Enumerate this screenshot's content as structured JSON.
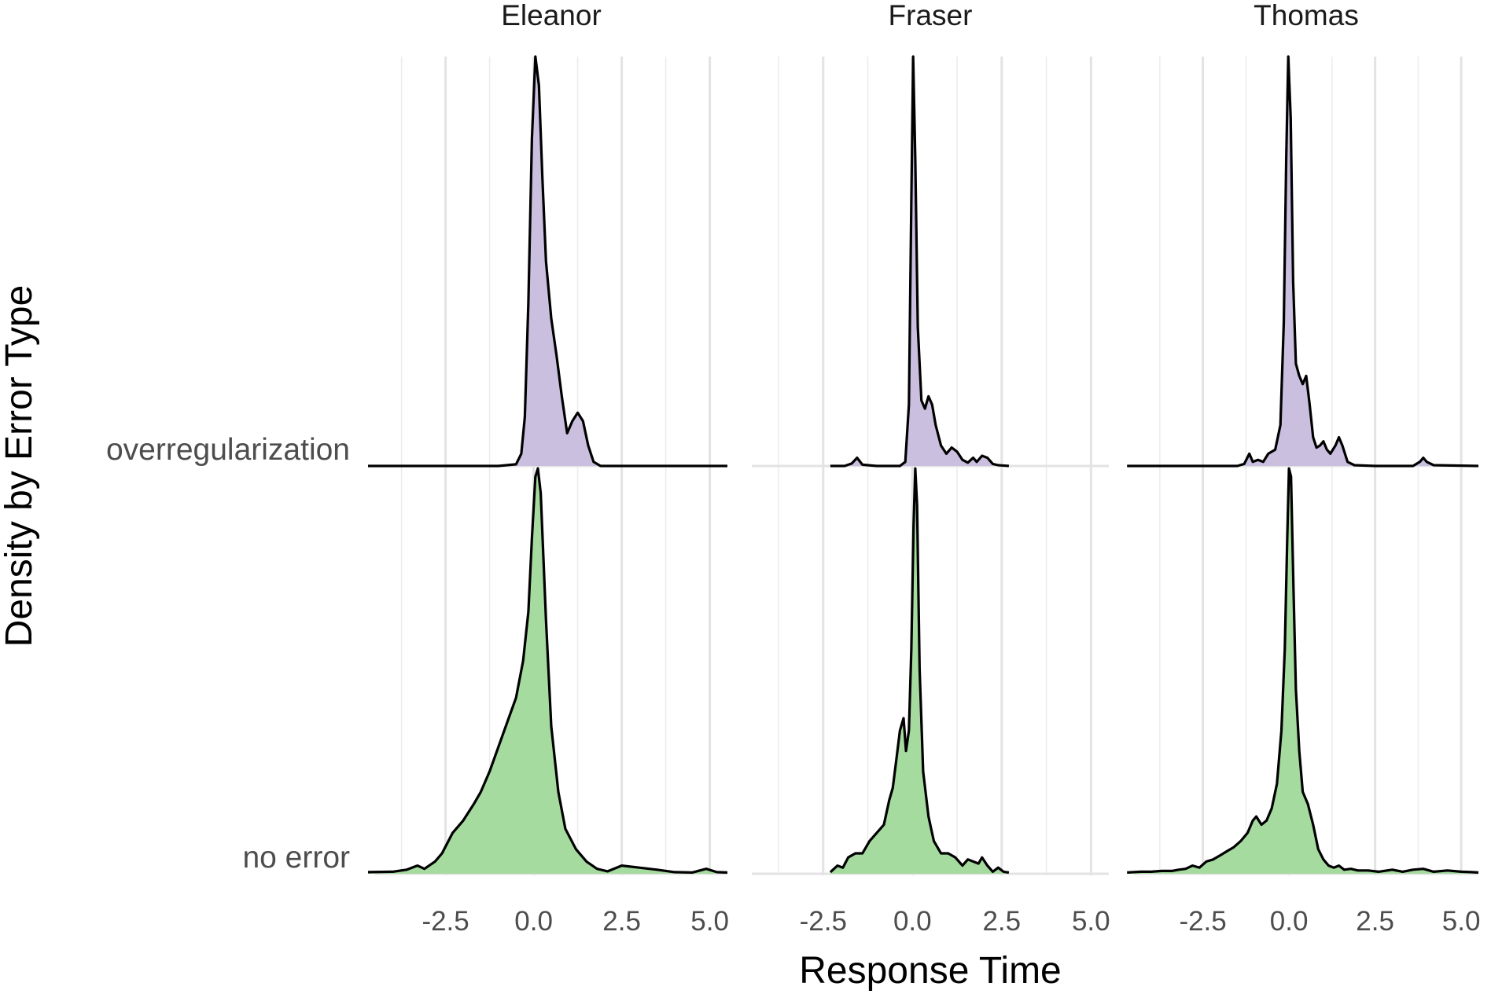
{
  "chart_data": {
    "type": "ridgeline-density",
    "xlabel": "Response Time",
    "ylabel": "Density by Error Type",
    "xlim": [
      -4.5,
      5.5
    ],
    "x_ticks": [
      -2.5,
      0.0,
      2.5,
      5.0
    ],
    "x_tick_labels": [
      "-2.5",
      "0.0",
      "2.5",
      "5.0"
    ],
    "grid": "vertical major and minor",
    "legend": "none",
    "categories": [
      "no error",
      "overregularization"
    ],
    "colors": {
      "overregularization": "#cbbfe0",
      "no error": "#a6dba0",
      "line": "#000000"
    },
    "facets": [
      {
        "name": "Eleanor",
        "series": [
          {
            "name": "overregularization",
            "points": [
              [
                -4.7,
                0
              ],
              [
                -1.0,
                0
              ],
              [
                -0.5,
                0.004
              ],
              [
                -0.35,
                0.03
              ],
              [
                -0.25,
                0.12
              ],
              [
                -0.15,
                0.4
              ],
              [
                -0.05,
                0.8
              ],
              [
                0.05,
                1.0
              ],
              [
                0.15,
                0.93
              ],
              [
                0.25,
                0.7
              ],
              [
                0.35,
                0.5
              ],
              [
                0.5,
                0.36
              ],
              [
                0.65,
                0.27
              ],
              [
                0.8,
                0.17
              ],
              [
                0.95,
                0.08
              ],
              [
                1.1,
                0.11
              ],
              [
                1.25,
                0.13
              ],
              [
                1.4,
                0.11
              ],
              [
                1.55,
                0.05
              ],
              [
                1.7,
                0.01
              ],
              [
                1.9,
                0
              ],
              [
                5.5,
                0
              ]
            ]
          },
          {
            "name": "no error",
            "points": [
              [
                -4.7,
                0.004
              ],
              [
                -4.0,
                0.005
              ],
              [
                -3.6,
                0.01
              ],
              [
                -3.3,
                0.02
              ],
              [
                -3.1,
                0.012
              ],
              [
                -2.8,
                0.03
              ],
              [
                -2.6,
                0.05
              ],
              [
                -2.3,
                0.1
              ],
              [
                -2.0,
                0.13
              ],
              [
                -1.7,
                0.17
              ],
              [
                -1.5,
                0.2
              ],
              [
                -1.25,
                0.25
              ],
              [
                -1.0,
                0.31
              ],
              [
                -0.75,
                0.37
              ],
              [
                -0.5,
                0.43
              ],
              [
                -0.3,
                0.52
              ],
              [
                -0.15,
                0.64
              ],
              [
                -0.05,
                0.82
              ],
              [
                0.05,
                0.97
              ],
              [
                0.12,
                0.99
              ],
              [
                0.2,
                0.93
              ],
              [
                0.35,
                0.62
              ],
              [
                0.5,
                0.36
              ],
              [
                0.7,
                0.2
              ],
              [
                0.9,
                0.11
              ],
              [
                1.2,
                0.06
              ],
              [
                1.5,
                0.03
              ],
              [
                1.8,
                0.012
              ],
              [
                2.1,
                0.006
              ],
              [
                2.5,
                0.02
              ],
              [
                3.0,
                0.015
              ],
              [
                3.5,
                0.01
              ],
              [
                4.0,
                0.004
              ],
              [
                4.5,
                0.003
              ],
              [
                4.9,
                0.012
              ],
              [
                5.2,
                0.004
              ],
              [
                5.5,
                0.003
              ]
            ]
          }
        ]
      },
      {
        "name": "Fraser",
        "series": [
          {
            "name": "overregularization",
            "points": [
              [
                -2.3,
                0
              ],
              [
                -1.9,
                0
              ],
              [
                -1.7,
                0.006
              ],
              [
                -1.55,
                0.02
              ],
              [
                -1.4,
                0.003
              ],
              [
                -1.0,
                0
              ],
              [
                -0.35,
                0
              ],
              [
                -0.2,
                0.01
              ],
              [
                -0.1,
                0.15
              ],
              [
                -0.03,
                0.65
              ],
              [
                0.02,
                1.0
              ],
              [
                0.08,
                0.75
              ],
              [
                0.15,
                0.34
              ],
              [
                0.25,
                0.16
              ],
              [
                0.35,
                0.14
              ],
              [
                0.45,
                0.17
              ],
              [
                0.55,
                0.15
              ],
              [
                0.65,
                0.1
              ],
              [
                0.8,
                0.05
              ],
              [
                0.95,
                0.03
              ],
              [
                1.1,
                0.045
              ],
              [
                1.25,
                0.035
              ],
              [
                1.4,
                0.015
              ],
              [
                1.55,
                0.008
              ],
              [
                1.7,
                0.02
              ],
              [
                1.8,
                0.01
              ],
              [
                1.95,
                0.025
              ],
              [
                2.1,
                0.02
              ],
              [
                2.25,
                0.005
              ],
              [
                2.4,
                0.002
              ],
              [
                2.7,
                0
              ]
            ]
          },
          {
            "name": "no error",
            "points": [
              [
                -2.3,
                0.004
              ],
              [
                -2.1,
                0.02
              ],
              [
                -1.95,
                0.015
              ],
              [
                -1.8,
                0.04
              ],
              [
                -1.6,
                0.05
              ],
              [
                -1.4,
                0.05
              ],
              [
                -1.2,
                0.08
              ],
              [
                -1.0,
                0.1
              ],
              [
                -0.8,
                0.12
              ],
              [
                -0.65,
                0.18
              ],
              [
                -0.55,
                0.21
              ],
              [
                -0.45,
                0.28
              ],
              [
                -0.35,
                0.35
              ],
              [
                -0.25,
                0.38
              ],
              [
                -0.18,
                0.3
              ],
              [
                -0.1,
                0.35
              ],
              [
                -0.03,
                0.55
              ],
              [
                0.03,
                0.85
              ],
              [
                0.08,
                0.99
              ],
              [
                0.13,
                0.9
              ],
              [
                0.2,
                0.5
              ],
              [
                0.3,
                0.25
              ],
              [
                0.45,
                0.14
              ],
              [
                0.6,
                0.08
              ],
              [
                0.8,
                0.05
              ],
              [
                1.0,
                0.05
              ],
              [
                1.2,
                0.04
              ],
              [
                1.4,
                0.02
              ],
              [
                1.55,
                0.035
              ],
              [
                1.7,
                0.03
              ],
              [
                1.85,
                0.025
              ],
              [
                1.95,
                0.04
              ],
              [
                2.1,
                0.02
              ],
              [
                2.25,
                0.005
              ],
              [
                2.4,
                0.015
              ],
              [
                2.55,
                0.005
              ],
              [
                2.7,
                0.003
              ]
            ]
          }
        ]
      },
      {
        "name": "Thomas",
        "series": [
          {
            "name": "overregularization",
            "points": [
              [
                -4.7,
                0
              ],
              [
                -1.5,
                0
              ],
              [
                -1.3,
                0.005
              ],
              [
                -1.15,
                0.03
              ],
              [
                -1.05,
                0.01
              ],
              [
                -0.9,
                0.015
              ],
              [
                -0.75,
                0.01
              ],
              [
                -0.6,
                0.03
              ],
              [
                -0.4,
                0.04
              ],
              [
                -0.25,
                0.1
              ],
              [
                -0.15,
                0.35
              ],
              [
                -0.08,
                0.75
              ],
              [
                -0.02,
                1.0
              ],
              [
                0.05,
                0.85
              ],
              [
                0.12,
                0.45
              ],
              [
                0.2,
                0.25
              ],
              [
                0.3,
                0.22
              ],
              [
                0.4,
                0.2
              ],
              [
                0.5,
                0.22
              ],
              [
                0.6,
                0.15
              ],
              [
                0.7,
                0.07
              ],
              [
                0.8,
                0.045
              ],
              [
                0.9,
                0.05
              ],
              [
                1.0,
                0.06
              ],
              [
                1.1,
                0.04
              ],
              [
                1.2,
                0.03
              ],
              [
                1.35,
                0.05
              ],
              [
                1.45,
                0.07
              ],
              [
                1.55,
                0.05
              ],
              [
                1.7,
                0.01
              ],
              [
                1.9,
                0.002
              ],
              [
                2.5,
                0
              ],
              [
                3.6,
                0
              ],
              [
                3.8,
                0.01
              ],
              [
                3.9,
                0.02
              ],
              [
                4.0,
                0.01
              ],
              [
                4.2,
                0.002
              ],
              [
                5.5,
                0
              ]
            ]
          },
          {
            "name": "no error",
            "points": [
              [
                -4.7,
                0.003
              ],
              [
                -4.3,
                0.005
              ],
              [
                -4.0,
                0.005
              ],
              [
                -3.7,
                0.007
              ],
              [
                -3.4,
                0.007
              ],
              [
                -3.2,
                0.01
              ],
              [
                -3.0,
                0.012
              ],
              [
                -2.8,
                0.02
              ],
              [
                -2.6,
                0.015
              ],
              [
                -2.4,
                0.03
              ],
              [
                -2.2,
                0.035
              ],
              [
                -2.0,
                0.045
              ],
              [
                -1.8,
                0.055
              ],
              [
                -1.6,
                0.065
              ],
              [
                -1.4,
                0.08
              ],
              [
                -1.2,
                0.1
              ],
              [
                -1.05,
                0.13
              ],
              [
                -0.95,
                0.14
              ],
              [
                -0.8,
                0.12
              ],
              [
                -0.65,
                0.13
              ],
              [
                -0.5,
                0.16
              ],
              [
                -0.35,
                0.22
              ],
              [
                -0.22,
                0.35
              ],
              [
                -0.12,
                0.55
              ],
              [
                -0.05,
                0.82
              ],
              [
                0.0,
                0.99
              ],
              [
                0.06,
                0.97
              ],
              [
                0.13,
                0.7
              ],
              [
                0.2,
                0.45
              ],
              [
                0.3,
                0.3
              ],
              [
                0.4,
                0.2
              ],
              [
                0.55,
                0.17
              ],
              [
                0.7,
                0.12
              ],
              [
                0.85,
                0.06
              ],
              [
                1.0,
                0.035
              ],
              [
                1.15,
                0.02
              ],
              [
                1.3,
                0.015
              ],
              [
                1.45,
                0.02
              ],
              [
                1.6,
                0.01
              ],
              [
                1.8,
                0.012
              ],
              [
                2.0,
                0.008
              ],
              [
                2.3,
                0.008
              ],
              [
                2.6,
                0.005
              ],
              [
                3.0,
                0.01
              ],
              [
                3.3,
                0.005
              ],
              [
                3.6,
                0.01
              ],
              [
                3.9,
                0.012
              ],
              [
                4.2,
                0.005
              ],
              [
                4.6,
                0.008
              ],
              [
                5.0,
                0.005
              ],
              [
                5.3,
                0.004
              ],
              [
                5.5,
                0.003
              ]
            ]
          }
        ]
      }
    ]
  }
}
